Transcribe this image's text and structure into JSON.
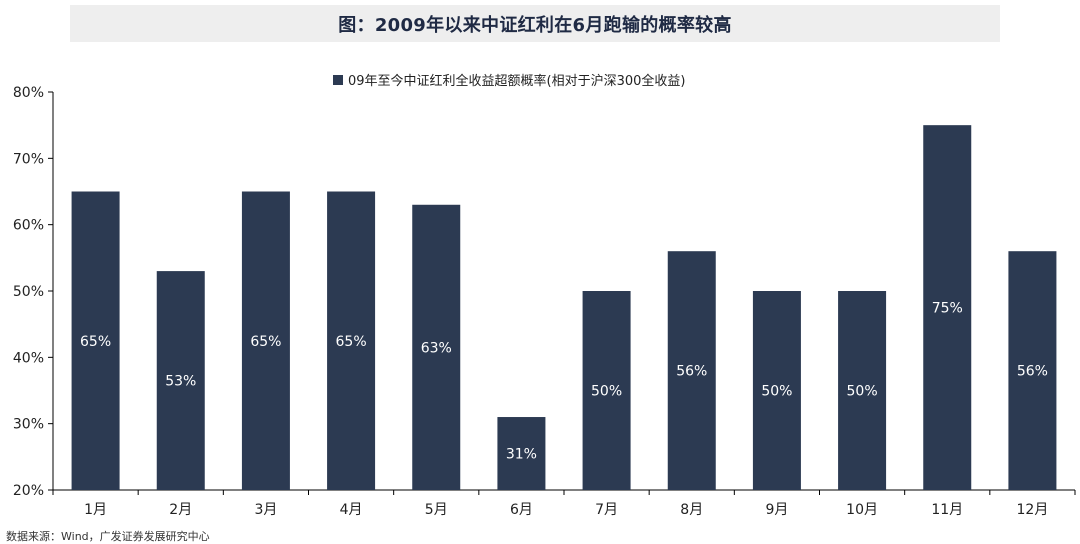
{
  "title": "图：2009年以来中证红利在6月跑输的概率较高",
  "source": "数据来源：Wind，广发证券发展研究中心",
  "colors": {
    "bar": "#2c3a52",
    "bar_label": "#ffffff",
    "axis": "#000000",
    "text": "#222222"
  },
  "chart_data": {
    "type": "bar",
    "categories": [
      "1月",
      "2月",
      "3月",
      "4月",
      "5月",
      "6月",
      "7月",
      "8月",
      "9月",
      "10月",
      "11月",
      "12月"
    ],
    "series": [
      {
        "name": "09年至今中证红利全收益超额概率(相对于沪深300全收益)",
        "values": [
          65,
          53,
          65,
          65,
          63,
          31,
          50,
          56,
          50,
          50,
          75,
          56
        ],
        "labels": [
          "65%",
          "53%",
          "65%",
          "65%",
          "63%",
          "31%",
          "50%",
          "56%",
          "50%",
          "50%",
          "75%",
          "56%"
        ]
      }
    ],
    "ylim": [
      20,
      80
    ],
    "yticks": [
      "20%",
      "30%",
      "40%",
      "50%",
      "60%",
      "70%",
      "80%"
    ],
    "ytick_values": [
      20,
      30,
      40,
      50,
      60,
      70,
      80
    ],
    "xlabel": "",
    "ylabel": "",
    "grid": false,
    "legend_position": "top-center"
  }
}
